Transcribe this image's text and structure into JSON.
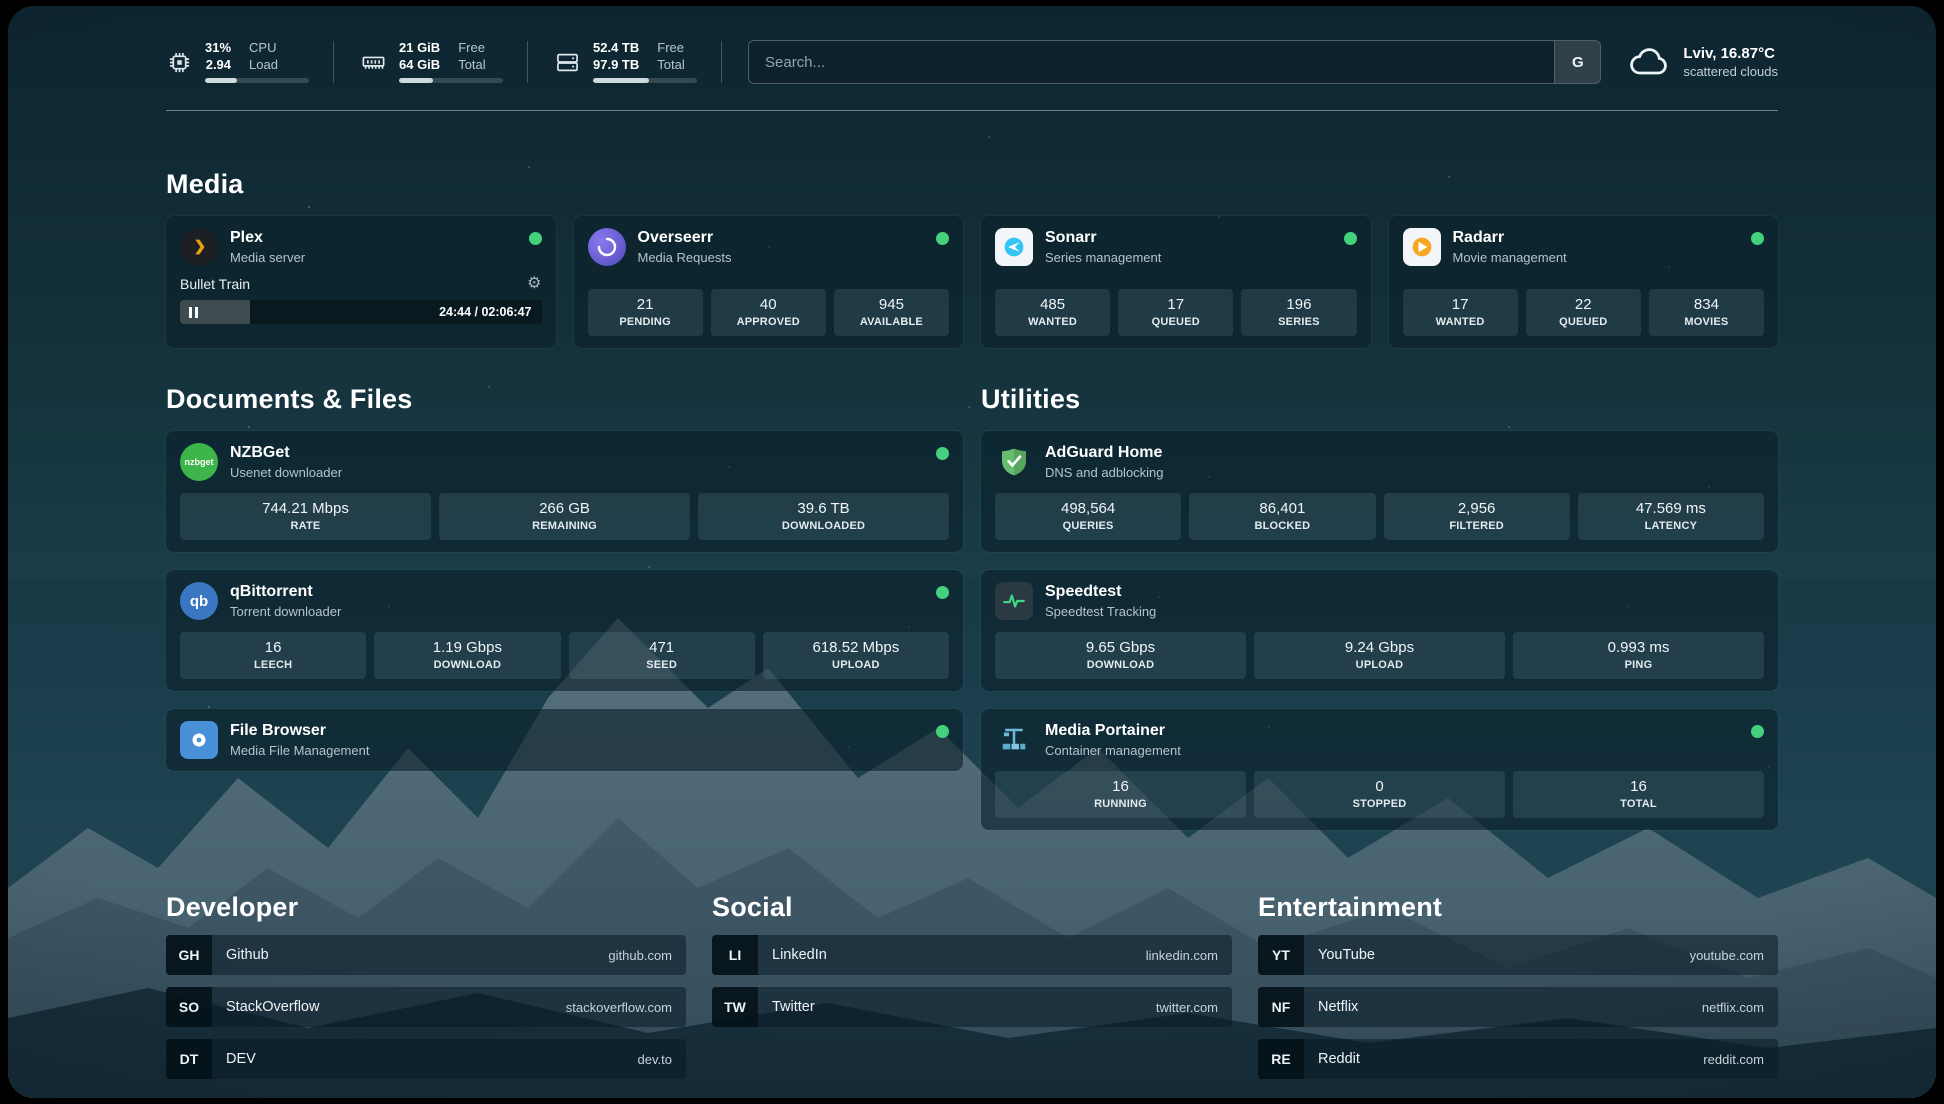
{
  "header": {
    "metrics": [
      {
        "id": "cpu",
        "icon": "cpu-icon",
        "val1": "31%",
        "val2": "2.94",
        "lab1": "CPU",
        "lab2": "Load",
        "bar": 31
      },
      {
        "id": "ram",
        "icon": "ram-icon",
        "val1": "21 GiB",
        "val2": "64 GiB",
        "lab1": "Free",
        "lab2": "Total",
        "bar": 33
      },
      {
        "id": "disk",
        "icon": "disk-icon",
        "val1": "52.4 TB",
        "val2": "97.9 TB",
        "lab1": "Free",
        "lab2": "Total",
        "bar": 54
      }
    ],
    "search": {
      "placeholder": "Search...",
      "button": "G"
    },
    "weather": {
      "icon": "cloud-icon",
      "location": "Lviv, 16.87°C",
      "condition": "scattered clouds"
    }
  },
  "media": {
    "title": "Media",
    "plex": {
      "name": "Plex",
      "desc": "Media server",
      "status": "online",
      "now_playing": "Bullet Train",
      "time": "24:44 / 02:06:47",
      "progress": 19.5,
      "gear_glyph": "⚙"
    },
    "overseerr": {
      "name": "Overseerr",
      "desc": "Media Requests",
      "status": "online",
      "stats": [
        {
          "v": "21",
          "l": "PENDING"
        },
        {
          "v": "40",
          "l": "APPROVED"
        },
        {
          "v": "945",
          "l": "AVAILABLE"
        }
      ]
    },
    "sonarr": {
      "name": "Sonarr",
      "desc": "Series management",
      "status": "online",
      "stats": [
        {
          "v": "485",
          "l": "WANTED"
        },
        {
          "v": "17",
          "l": "QUEUED"
        },
        {
          "v": "196",
          "l": "SERIES"
        }
      ]
    },
    "radarr": {
      "name": "Radarr",
      "desc": "Movie management",
      "status": "online",
      "stats": [
        {
          "v": "17",
          "l": "WANTED"
        },
        {
          "v": "22",
          "l": "QUEUED"
        },
        {
          "v": "834",
          "l": "MOVIES"
        }
      ]
    }
  },
  "documents": {
    "title": "Documents & Files",
    "nzbget": {
      "name": "NZBGet",
      "desc": "Usenet downloader",
      "status": "online",
      "stats": [
        {
          "v": "744.21 Mbps",
          "l": "RATE"
        },
        {
          "v": "266 GB",
          "l": "REMAINING"
        },
        {
          "v": "39.6 TB",
          "l": "DOWNLOADED"
        }
      ]
    },
    "qbittorrent": {
      "name": "qBittorrent",
      "desc": "Torrent downloader",
      "status": "online",
      "stats": [
        {
          "v": "16",
          "l": "LEECH"
        },
        {
          "v": "1.19 Gbps",
          "l": "DOWNLOAD"
        },
        {
          "v": "471",
          "l": "SEED"
        },
        {
          "v": "618.52 Mbps",
          "l": "UPLOAD"
        }
      ]
    },
    "filebrowser": {
      "name": "File Browser",
      "desc": "Media File Management",
      "status": "online"
    }
  },
  "utilities": {
    "title": "Utilities",
    "adguard": {
      "name": "AdGuard Home",
      "desc": "DNS and adblocking",
      "stats": [
        {
          "v": "498,564",
          "l": "QUERIES"
        },
        {
          "v": "86,401",
          "l": "BLOCKED"
        },
        {
          "v": "2,956",
          "l": "FILTERED"
        },
        {
          "v": "47.569 ms",
          "l": "LATENCY"
        }
      ]
    },
    "speedtest": {
      "name": "Speedtest",
      "desc": "Speedtest Tracking",
      "stats": [
        {
          "v": "9.65 Gbps",
          "l": "DOWNLOAD"
        },
        {
          "v": "9.24 Gbps",
          "l": "UPLOAD"
        },
        {
          "v": "0.993 ms",
          "l": "PING"
        }
      ]
    },
    "portainer": {
      "name": "Media Portainer",
      "desc": "Container management",
      "status": "online",
      "stats": [
        {
          "v": "16",
          "l": "RUNNING"
        },
        {
          "v": "0",
          "l": "STOPPED"
        },
        {
          "v": "16",
          "l": "TOTAL"
        }
      ]
    }
  },
  "links": {
    "developer": {
      "title": "Developer",
      "items": [
        {
          "abbr": "GH",
          "name": "Github",
          "url": "github.com"
        },
        {
          "abbr": "SO",
          "name": "StackOverflow",
          "url": "stackoverflow.com"
        },
        {
          "abbr": "DT",
          "name": "DEV",
          "url": "dev.to"
        }
      ]
    },
    "social": {
      "title": "Social",
      "items": [
        {
          "abbr": "LI",
          "name": "LinkedIn",
          "url": "linkedin.com"
        },
        {
          "abbr": "TW",
          "name": "Twitter",
          "url": "twitter.com"
        }
      ]
    },
    "entertainment": {
      "title": "Entertainment",
      "items": [
        {
          "abbr": "YT",
          "name": "YouTube",
          "url": "youtube.com"
        },
        {
          "abbr": "NF",
          "name": "Netflix",
          "url": "netflix.com"
        },
        {
          "abbr": "RE",
          "name": "Reddit",
          "url": "reddit.com"
        }
      ]
    }
  },
  "icons": {
    "nzbget_text": "nzbget",
    "qbittorrent_text": "qb"
  },
  "colors": {
    "status_online": "#43d17c",
    "plex_amber": "#e5a00d",
    "sonarr_blue": "#35c5f4",
    "radarr_amber": "#f7a823",
    "adguard_green": "#68bc71",
    "speedtest_green": "#3ddc84"
  }
}
